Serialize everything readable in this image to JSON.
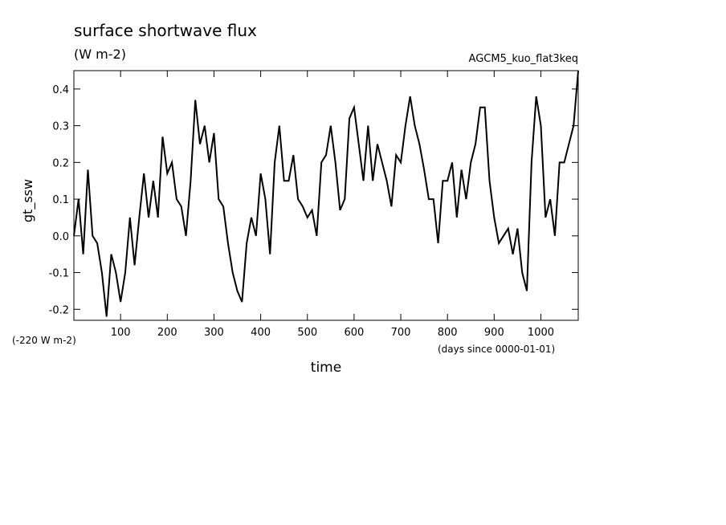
{
  "chart_data": {
    "type": "line",
    "title": "surface shortwave flux",
    "subtitle": "(W m-2)",
    "annotation": "AGCM5_kuo_flat3keq",
    "ylabel": "gt_ssw",
    "y_offset_label": "(-220 W m-2)",
    "xlabel": "time",
    "x_units_label": "(days since 0000-01-01)",
    "color": "#000000",
    "xlim": [
      0,
      1080
    ],
    "ylim": [
      -0.23,
      0.45
    ],
    "xticks": [
      100,
      200,
      300,
      400,
      500,
      600,
      700,
      800,
      900,
      1000
    ],
    "yticks": [
      -0.2,
      -0.1,
      {
        "value": 0,
        "label": "0.0"
      },
      0.1,
      0.2,
      0.3,
      0.4
    ],
    "x": [
      0,
      10,
      20,
      30,
      40,
      50,
      60,
      70,
      80,
      90,
      100,
      110,
      120,
      130,
      140,
      150,
      160,
      170,
      180,
      190,
      200,
      210,
      220,
      230,
      240,
      250,
      260,
      270,
      280,
      290,
      300,
      310,
      320,
      330,
      340,
      350,
      360,
      370,
      380,
      390,
      400,
      410,
      420,
      430,
      440,
      450,
      460,
      470,
      480,
      490,
      500,
      510,
      520,
      530,
      540,
      550,
      560,
      570,
      580,
      590,
      600,
      610,
      620,
      630,
      640,
      650,
      660,
      670,
      680,
      690,
      700,
      710,
      720,
      730,
      740,
      750,
      760,
      770,
      780,
      790,
      800,
      810,
      820,
      830,
      840,
      850,
      860,
      870,
      880,
      890,
      900,
      910,
      920,
      930,
      940,
      950,
      960,
      970,
      980,
      990,
      1000,
      1010,
      1020,
      1030,
      1040,
      1050,
      1060,
      1070,
      1080
    ],
    "values": [
      0.0,
      0.1,
      -0.05,
      0.18,
      0.0,
      -0.02,
      -0.1,
      -0.22,
      -0.05,
      -0.1,
      -0.18,
      -0.1,
      0.05,
      -0.08,
      0.05,
      0.17,
      0.05,
      0.15,
      0.05,
      0.27,
      0.17,
      0.2,
      0.1,
      0.08,
      0.0,
      0.15,
      0.37,
      0.25,
      0.3,
      0.2,
      0.28,
      0.1,
      0.08,
      -0.02,
      -0.1,
      -0.15,
      -0.18,
      -0.02,
      0.05,
      0.0,
      0.17,
      0.1,
      -0.05,
      0.2,
      0.3,
      0.15,
      0.15,
      0.22,
      0.1,
      0.08,
      0.05,
      0.07,
      0.0,
      0.2,
      0.22,
      0.3,
      0.2,
      0.07,
      0.1,
      0.32,
      0.35,
      0.25,
      0.15,
      0.3,
      0.15,
      0.25,
      0.2,
      0.15,
      0.08,
      0.22,
      0.2,
      0.3,
      0.38,
      0.3,
      0.25,
      0.18,
      0.1,
      0.1,
      -0.02,
      0.15,
      0.15,
      0.2,
      0.05,
      0.18,
      0.1,
      0.2,
      0.25,
      0.35,
      0.35,
      0.15,
      0.05,
      -0.02,
      0.0,
      0.02,
      -0.05,
      0.02,
      -0.1,
      -0.15,
      0.2,
      0.38,
      0.3,
      0.05,
      0.1,
      0.0,
      0.2,
      0.2,
      0.25,
      0.3,
      0.45
    ]
  }
}
